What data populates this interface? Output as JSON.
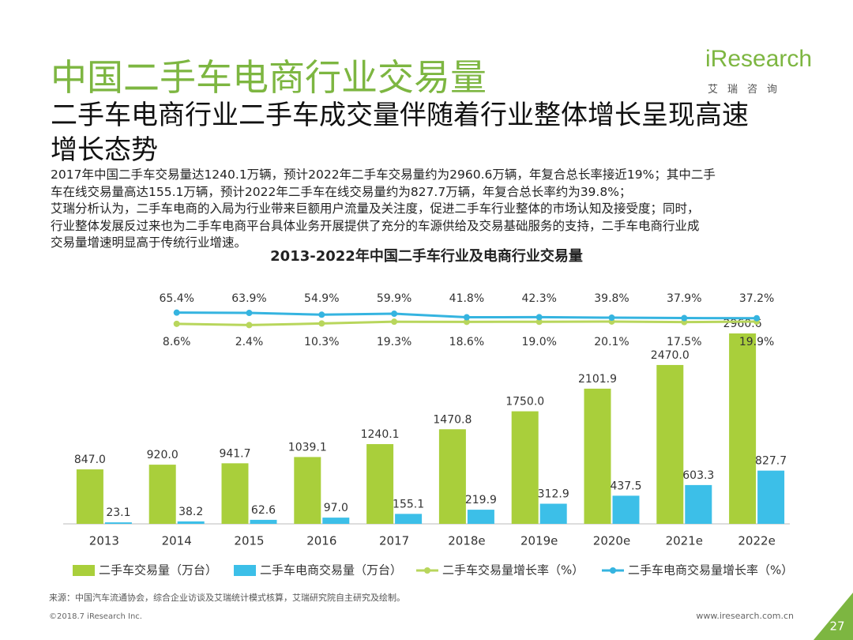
{
  "header": {
    "title": "中国二手车电商行业交易量",
    "subtitle": [
      "二手车电商行业二手车成交量伴随着行业整体增长呈现高速",
      "增长态势"
    ],
    "logo": "iResearch",
    "logo_cn": "艾瑞咨询"
  },
  "paragraph": [
    "2017年中国二手车交易量达1240.1万辆，预计2022年二手车交易量约为2960.6万辆，年复合总长率接近19%；其中二手",
    "车在线交易量高达155.1万辆，预计2022年二手车在线交易量约为827.7万辆，年复合总长率约为39.8%；",
    "艾瑞分析认为，二手车电商的入局为行业带来巨额用户流量及关注度，促进二手车行业整体的市场认知及接受度；同时，",
    "行业整体发展反过来也为二手车电商平台具体业务开展提供了充分的车源供给及交易基础服务的支持，二手车电商行业成",
    "交易量增速明显高于传统行业增速。"
  ],
  "chart_data": {
    "type": "bar",
    "title": "2013-2022年中国二手车行业及电商行业交易量",
    "categories": [
      "2013",
      "2014",
      "2015",
      "2016",
      "2017",
      "2018e",
      "2019e",
      "2020e",
      "2021e",
      "2022e"
    ],
    "series": [
      {
        "name": "二手车交易量（万台）",
        "type": "bar",
        "color": "#a9cf3b",
        "values": [
          847.0,
          920.0,
          941.7,
          1039.1,
          1240.1,
          1470.8,
          1750.0,
          2101.9,
          2470.0,
          2960.6
        ],
        "value_labels": [
          "847.0",
          "920.0",
          "941.7",
          "1039.1",
          "1240.1",
          "1470.8",
          "1750.0",
          "2101.9",
          "2470.0",
          "2960.6"
        ]
      },
      {
        "name": "二手车电商交易量（万台）",
        "type": "bar",
        "color": "#3cbfe8",
        "values": [
          23.1,
          38.2,
          62.6,
          97.0,
          155.1,
          219.9,
          312.9,
          437.5,
          603.3,
          827.7
        ],
        "value_labels": [
          "23.1",
          "38.2",
          "62.6",
          "97.0",
          "155.1",
          "219.9",
          "312.9",
          "437.5",
          "603.3",
          "827.7"
        ]
      },
      {
        "name": "二手车交易量增长率（%）",
        "type": "line",
        "color": "#b8d65c",
        "values": [
          null,
          8.6,
          2.4,
          10.3,
          19.3,
          18.6,
          19.0,
          20.1,
          17.5,
          19.9
        ],
        "value_labels": [
          null,
          "8.6%",
          "2.4%",
          "10.3%",
          "19.3%",
          "18.6%",
          "19.0%",
          "20.1%",
          "17.5%",
          "19.9%"
        ]
      },
      {
        "name": "二手车电商交易量增长率（%）",
        "type": "line",
        "color": "#35b4e0",
        "values": [
          null,
          65.4,
          63.9,
          54.9,
          59.9,
          41.8,
          42.3,
          39.8,
          37.9,
          37.2
        ],
        "value_labels": [
          null,
          "65.4%",
          "63.9%",
          "54.9%",
          "59.9%",
          "41.8%",
          "42.3%",
          "39.8%",
          "37.9%",
          "37.2%"
        ]
      }
    ],
    "legend": "bottom"
  },
  "footer": {
    "source": "来源：中国汽车流通协会，综合企业访谈及艾瑞统计模式核算，艾瑞研究院自主研究及绘制。",
    "copyright": "©2018.7 iResearch Inc.",
    "url": "www.iresearch.com.cn",
    "page": "27"
  }
}
